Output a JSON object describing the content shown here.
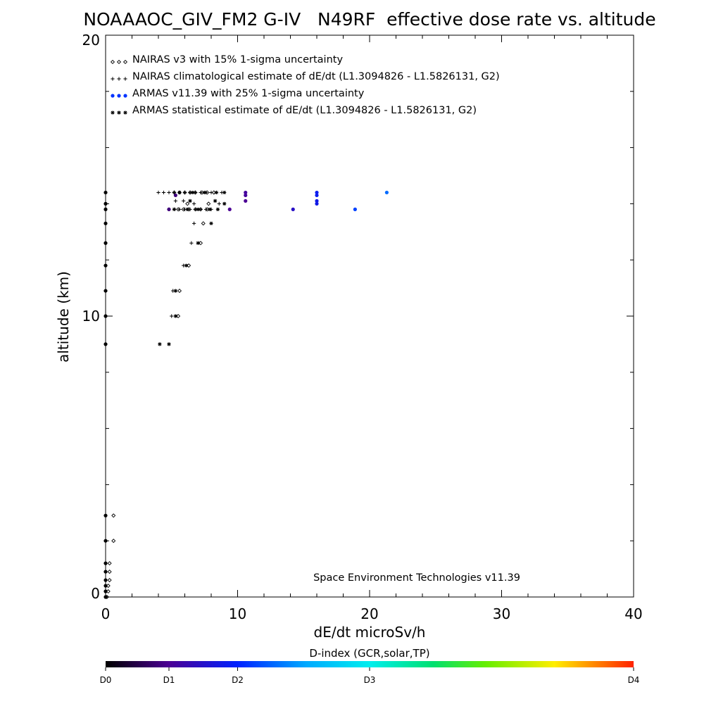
{
  "chart_data": {
    "type": "scatter",
    "title": "NOAAAOC_GIV_FM2 G-IV   N49RF  effective dose rate vs. altitude",
    "xlabel": "dE/dt microSv/h",
    "ylabel": "altitude (km)",
    "xlim": [
      0,
      40
    ],
    "ylim": [
      0,
      20
    ],
    "x_tick_labels": [
      "0",
      "10",
      "20",
      "30",
      "40"
    ],
    "y_tick_labels": [
      "0",
      "10",
      "20"
    ],
    "grid": false,
    "legend_position": "top-left",
    "legend": [
      {
        "marker": "diamond",
        "text": "NAIRAS v3 with 15% 1-sigma uncertainty"
      },
      {
        "marker": "plus",
        "text": "NAIRAS climatological estimate of dE/dt (L1.3094826 - L1.5826131, G2)"
      },
      {
        "marker": "dot",
        "text": "ARMAS v11.39 with 25% 1-sigma uncertainty"
      },
      {
        "marker": "asterisk",
        "text": "ARMAS statistical estimate of dE/dt (L1.3094826 - L1.5826131, G2)"
      }
    ],
    "annotation": "Space Environment Technologies v11.39",
    "colorbar": {
      "title": "D-index (GCR,solar,TP)",
      "tick_labels": [
        "D0",
        "D1",
        "D2",
        "D3",
        "D4"
      ],
      "tick_values": [
        0,
        0.12,
        0.25,
        0.5,
        1.0
      ]
    },
    "series": [
      {
        "name": "NAIRAS v3 with 15% 1-sigma uncertainty",
        "marker": "diamond",
        "points": [
          [
            0.6,
            2.9
          ],
          [
            0.6,
            2.0
          ],
          [
            0.3,
            1.2
          ],
          [
            0.3,
            0.9
          ],
          [
            0.3,
            0.6
          ],
          [
            0.2,
            0.4
          ],
          [
            0.2,
            0.2
          ],
          [
            0.1,
            0.0
          ],
          [
            5.5,
            10.0
          ],
          [
            5.6,
            10.9
          ],
          [
            6.3,
            11.8
          ],
          [
            7.2,
            12.6
          ],
          [
            7.4,
            13.3
          ],
          [
            5.2,
            14.4
          ],
          [
            5.6,
            14.4
          ],
          [
            6.0,
            14.4
          ],
          [
            6.4,
            14.4
          ],
          [
            6.8,
            14.4
          ],
          [
            7.3,
            14.4
          ],
          [
            7.7,
            14.4
          ],
          [
            8.2,
            14.4
          ],
          [
            5.5,
            13.8
          ],
          [
            5.9,
            13.8
          ],
          [
            6.3,
            13.8
          ],
          [
            6.8,
            13.8
          ],
          [
            7.2,
            13.8
          ],
          [
            7.7,
            13.8
          ],
          [
            6.2,
            14.0
          ],
          [
            7.8,
            14.0
          ]
        ]
      },
      {
        "name": "NAIRAS climatological estimate of dE/dt (L1.3094826 - L1.5826131, G2)",
        "marker": "plus",
        "points": [
          [
            5.0,
            10.0
          ],
          [
            5.1,
            10.9
          ],
          [
            5.9,
            11.8
          ],
          [
            6.5,
            12.6
          ],
          [
            6.7,
            13.3
          ],
          [
            4.0,
            14.4
          ],
          [
            4.4,
            14.4
          ],
          [
            4.8,
            14.4
          ],
          [
            5.2,
            14.4
          ],
          [
            5.6,
            14.4
          ],
          [
            6.0,
            14.4
          ],
          [
            6.4,
            14.4
          ],
          [
            6.8,
            14.4
          ],
          [
            7.2,
            14.4
          ],
          [
            7.6,
            14.4
          ],
          [
            8.0,
            14.4
          ],
          [
            8.4,
            14.4
          ],
          [
            8.8,
            14.4
          ],
          [
            5.3,
            14.1
          ],
          [
            5.9,
            14.1
          ],
          [
            6.7,
            14.0
          ],
          [
            8.6,
            14.0
          ],
          [
            4.8,
            13.8
          ],
          [
            5.2,
            13.8
          ],
          [
            5.6,
            13.8
          ],
          [
            6.0,
            13.8
          ],
          [
            6.4,
            13.8
          ],
          [
            6.8,
            13.8
          ],
          [
            7.2,
            13.8
          ],
          [
            7.6,
            13.8
          ],
          [
            8.0,
            13.8
          ]
        ]
      },
      {
        "name": "ARMAS statistical estimate of dE/dt (L1.3094826 - L1.5826131, G2)",
        "marker": "asterisk",
        "points": [
          [
            4.1,
            9.0
          ],
          [
            4.8,
            9.0
          ],
          [
            5.3,
            10.0
          ],
          [
            5.3,
            10.9
          ],
          [
            6.1,
            11.8
          ],
          [
            7.0,
            12.6
          ],
          [
            8.0,
            13.3
          ],
          [
            5.6,
            14.4
          ],
          [
            6.6,
            14.4
          ],
          [
            7.5,
            14.4
          ],
          [
            8.4,
            14.4
          ],
          [
            9.0,
            14.4
          ],
          [
            6.4,
            14.1
          ],
          [
            8.3,
            14.1
          ],
          [
            9.0,
            14.0
          ],
          [
            5.2,
            13.8
          ],
          [
            6.2,
            13.8
          ],
          [
            7.0,
            13.8
          ],
          [
            7.9,
            13.8
          ],
          [
            8.5,
            13.8
          ]
        ]
      },
      {
        "name": "ARMAS v11.39 with 25% 1-sigma uncertainty",
        "marker": "dot",
        "points": [
          {
            "x": 0.0,
            "y": 14.4,
            "d": 0.0
          },
          {
            "x": 0.0,
            "y": 14.0,
            "d": 0.0
          },
          {
            "x": 0.0,
            "y": 13.8,
            "d": 0.0
          },
          {
            "x": 0.0,
            "y": 13.3,
            "d": 0.0
          },
          {
            "x": 0.0,
            "y": 12.6,
            "d": 0.0
          },
          {
            "x": 0.0,
            "y": 11.8,
            "d": 0.0
          },
          {
            "x": 0.0,
            "y": 10.9,
            "d": 0.0
          },
          {
            "x": 0.0,
            "y": 10.0,
            "d": 0.0
          },
          {
            "x": 0.0,
            "y": 9.0,
            "d": 0.0
          },
          {
            "x": 0.0,
            "y": 2.9,
            "d": 0.0
          },
          {
            "x": 0.0,
            "y": 2.0,
            "d": 0.0
          },
          {
            "x": 0.0,
            "y": 1.2,
            "d": 0.0
          },
          {
            "x": 0.0,
            "y": 0.9,
            "d": 0.0
          },
          {
            "x": 0.0,
            "y": 0.6,
            "d": 0.0
          },
          {
            "x": 0.0,
            "y": 0.4,
            "d": 0.0
          },
          {
            "x": 0.0,
            "y": 0.2,
            "d": 0.0
          },
          {
            "x": 0.0,
            "y": 0.0,
            "d": 0.0
          },
          {
            "x": 5.3,
            "y": 14.3,
            "d": 0.1
          },
          {
            "x": 4.8,
            "y": 13.8,
            "d": 0.1
          },
          {
            "x": 9.4,
            "y": 13.8,
            "d": 0.12
          },
          {
            "x": 10.6,
            "y": 14.4,
            "d": 0.13
          },
          {
            "x": 10.6,
            "y": 14.3,
            "d": 0.13
          },
          {
            "x": 10.6,
            "y": 14.1,
            "d": 0.12
          },
          {
            "x": 14.2,
            "y": 13.8,
            "d": 0.18
          },
          {
            "x": 16.0,
            "y": 14.4,
            "d": 0.23
          },
          {
            "x": 16.0,
            "y": 14.3,
            "d": 0.23
          },
          {
            "x": 16.0,
            "y": 14.1,
            "d": 0.22
          },
          {
            "x": 16.0,
            "y": 14.0,
            "d": 0.22
          },
          {
            "x": 18.9,
            "y": 13.8,
            "d": 0.28
          },
          {
            "x": 21.3,
            "y": 14.4,
            "d": 0.32
          }
        ]
      }
    ]
  }
}
